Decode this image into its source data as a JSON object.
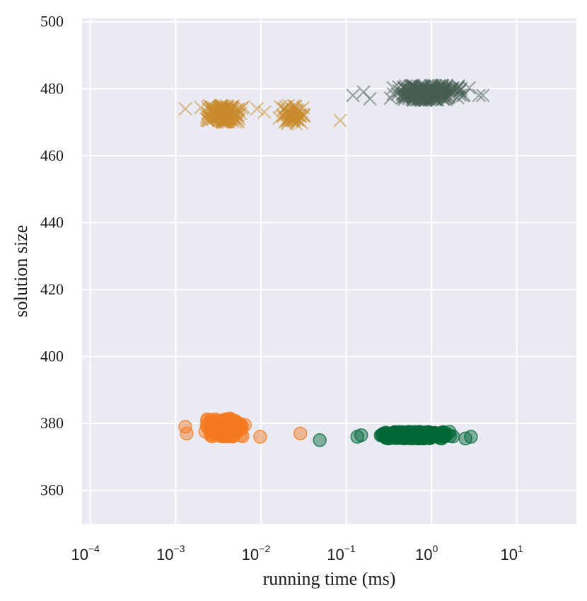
{
  "chart_data": {
    "type": "scatter",
    "title": "",
    "xlabel": "running time (ms)",
    "ylabel": "solution size",
    "xscale": "log",
    "xlim": [
      8e-05,
      50
    ],
    "ylim": [
      350,
      501
    ],
    "grid": true,
    "legend": "none",
    "x_ticks": [
      {
        "value": 0.0001,
        "base": "10",
        "exp": "−4"
      },
      {
        "value": 0.001,
        "base": "10",
        "exp": "−3"
      },
      {
        "value": 0.01,
        "base": "10",
        "exp": "−2"
      },
      {
        "value": 0.1,
        "base": "10",
        "exp": "−1"
      },
      {
        "value": 1,
        "base": "10",
        "exp": "0"
      },
      {
        "value": 10,
        "base": "10",
        "exp": "1"
      }
    ],
    "y_ticks": [
      {
        "value": 360,
        "label": "360"
      },
      {
        "value": 380,
        "label": "380"
      },
      {
        "value": 400,
        "label": "400"
      },
      {
        "value": 420,
        "label": "420"
      },
      {
        "value": 440,
        "label": "440"
      },
      {
        "value": 460,
        "label": "460"
      },
      {
        "value": 480,
        "label": "480"
      },
      {
        "value": 500,
        "label": "500"
      }
    ],
    "series": [
      {
        "marker": "x",
        "color": "#c8892a",
        "clusters": [
          {
            "x_range": [
              0.0018,
              0.0072
            ],
            "y_range": [
              470,
              475
            ],
            "count": 160
          },
          {
            "x_range": [
              0.014,
              0.038
            ],
            "y_range": [
              469.5,
              475
            ],
            "count": 55
          }
        ],
        "points": [
          [
            0.0013,
            474
          ],
          [
            0.009,
            474
          ],
          [
            0.011,
            473
          ],
          [
            0.085,
            470.5
          ]
        ]
      },
      {
        "marker": "x",
        "color": "#465d52",
        "clusters": [
          {
            "x_range": [
              0.25,
              3.2
            ],
            "y_range": [
              476.5,
              481
            ],
            "count": 230
          }
        ],
        "points": [
          [
            0.12,
            478
          ],
          [
            0.16,
            479
          ],
          [
            0.19,
            477
          ],
          [
            3.6,
            478
          ],
          [
            4.0,
            478
          ]
        ]
      },
      {
        "marker": "o",
        "color": "#f47a1f",
        "clusters": [
          {
            "x_range": [
              0.0019,
              0.0078
            ],
            "y_range": [
              376,
              381.5
            ],
            "count": 170
          }
        ],
        "points": [
          [
            0.0013,
            379
          ],
          [
            0.00135,
            377
          ],
          [
            0.0098,
            376
          ],
          [
            0.029,
            377
          ]
        ]
      },
      {
        "marker": "o",
        "color": "#006837",
        "clusters": [
          {
            "x_range": [
              0.18,
              2.2
            ],
            "y_range": [
              375.5,
              377.5
            ],
            "count": 260
          }
        ],
        "points": [
          [
            0.049,
            375
          ],
          [
            0.135,
            376
          ],
          [
            0.15,
            376.5
          ],
          [
            2.5,
            375.5
          ],
          [
            2.9,
            376
          ]
        ]
      }
    ]
  }
}
